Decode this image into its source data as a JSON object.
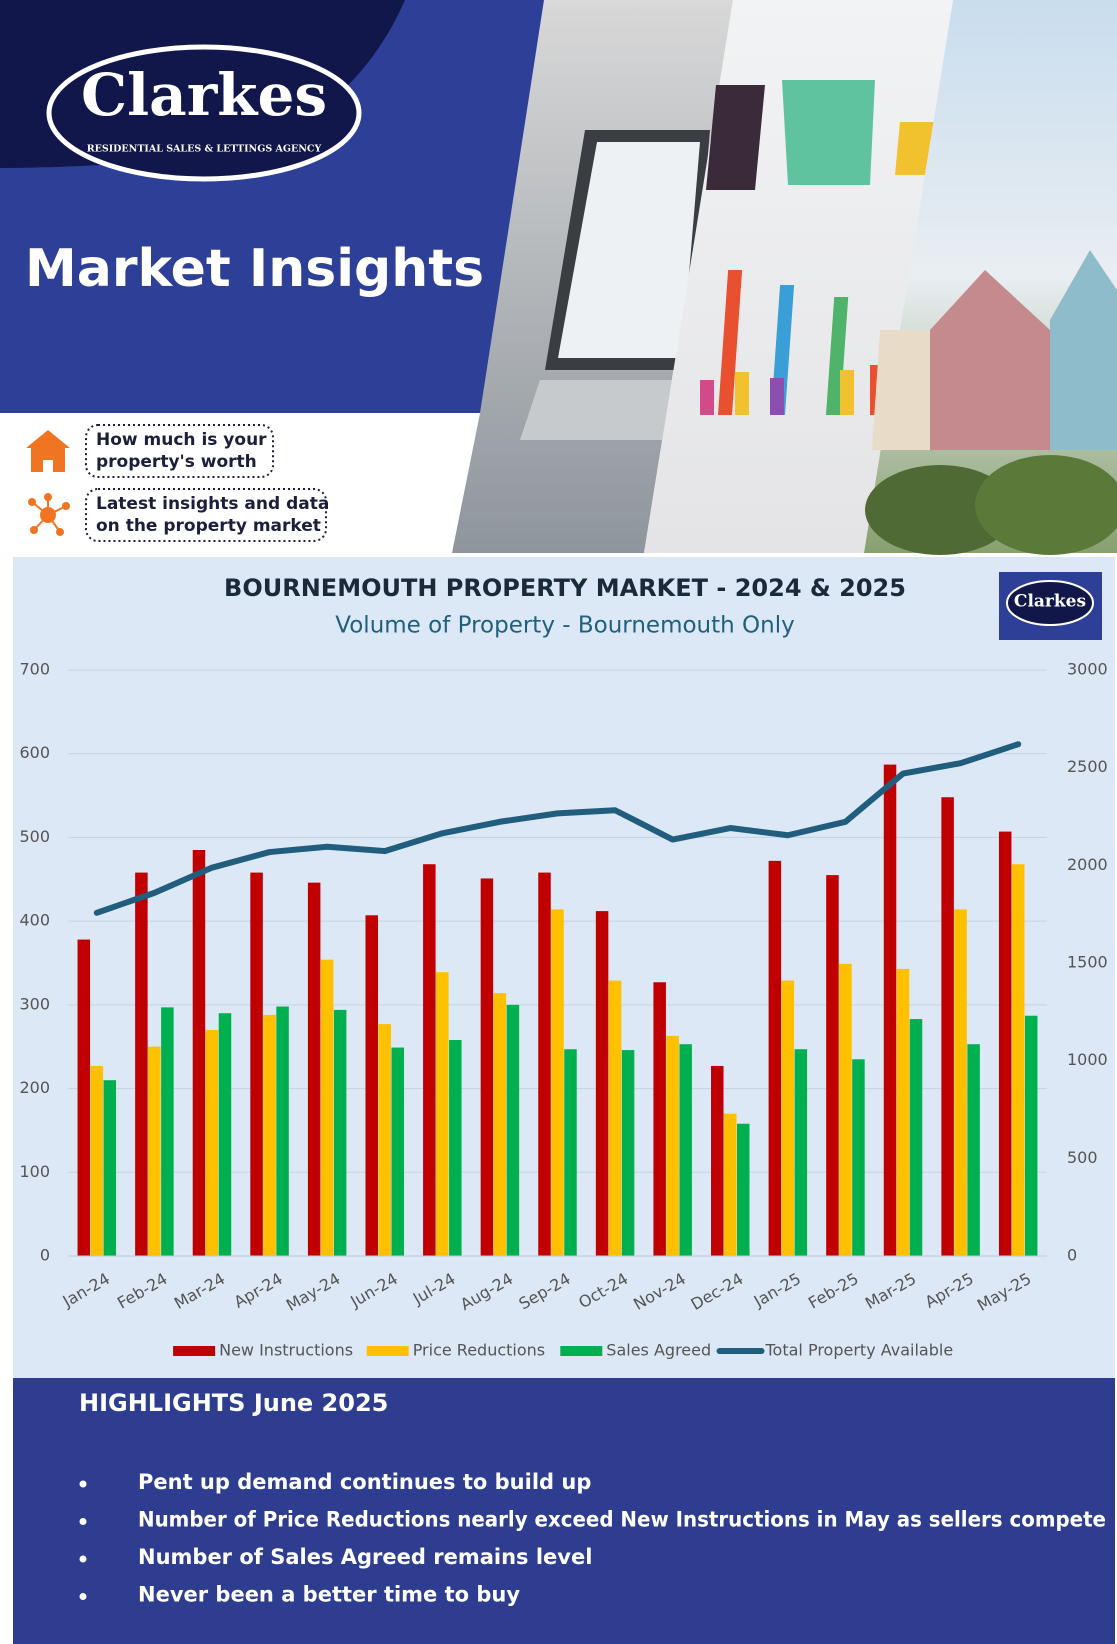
{
  "logo": {
    "name": "Clarkes",
    "tagline": "RESIDENTIAL SALES & LETTINGS AGENCY"
  },
  "header": {
    "title": "Market Insights"
  },
  "callouts": [
    [
      "How much is your",
      "property's worth"
    ],
    [
      "Latest insights and data",
      "on the property market"
    ]
  ],
  "chart_logo": "Clarkes",
  "chart_data": {
    "type": "bar",
    "title": "BOURNEMOUTH PROPERTY MARKET - 2024 & 2025",
    "subtitle": "Volume of Property - Bournemouth Only",
    "categories": [
      "Jan-24",
      "Feb-24",
      "Mar-24",
      "Apr-24",
      "May-24",
      "Jun-24",
      "Jul-24",
      "Aug-24",
      "Sep-24",
      "Oct-24",
      "Nov-24",
      "Dec-24",
      "Jan-25",
      "Feb-25",
      "Mar-25",
      "Apr-25",
      "May-25"
    ],
    "series": [
      {
        "name": "New Instructions",
        "color": "#c00000",
        "values": [
          378,
          458,
          485,
          458,
          446,
          407,
          468,
          451,
          458,
          412,
          327,
          227,
          472,
          455,
          587,
          548,
          507
        ]
      },
      {
        "name": "Price Reductions",
        "color": "#ffc000",
        "values": [
          227,
          250,
          270,
          288,
          354,
          277,
          339,
          314,
          414,
          329,
          263,
          170,
          329,
          349,
          343,
          414,
          468
        ]
      },
      {
        "name": "Sales Agreed",
        "color": "#00b050",
        "values": [
          210,
          297,
          290,
          298,
          294,
          249,
          258,
          300,
          247,
          246,
          253,
          158,
          247,
          235,
          283,
          253,
          287
        ]
      },
      {
        "name": "Total Property Available",
        "color": "#215d7c",
        "type": "line",
        "axis": "y2",
        "values": [
          1757,
          1859,
          1988,
          2068,
          2095,
          2073,
          2164,
          2223,
          2266,
          2282,
          2132,
          2191,
          2154,
          2223,
          2470,
          2523,
          2620
        ]
      }
    ],
    "ylim": [
      0,
      700
    ],
    "yticks": [
      0,
      100,
      200,
      300,
      400,
      500,
      600,
      700
    ],
    "y2lim": [
      0,
      3000
    ],
    "y2ticks": [
      0,
      500,
      1000,
      1500,
      2000,
      2500,
      3000
    ],
    "grid": true,
    "legend": "bottom"
  },
  "highlights": {
    "title": "HIGHLIGHTS June 2025",
    "items": [
      "Pent up demand continues to build up",
      "Number of Price Reductions nearly exceed New Instructions in May as sellers compete",
      "Number of Sales Agreed remains level",
      "Never been a better time to buy"
    ]
  }
}
